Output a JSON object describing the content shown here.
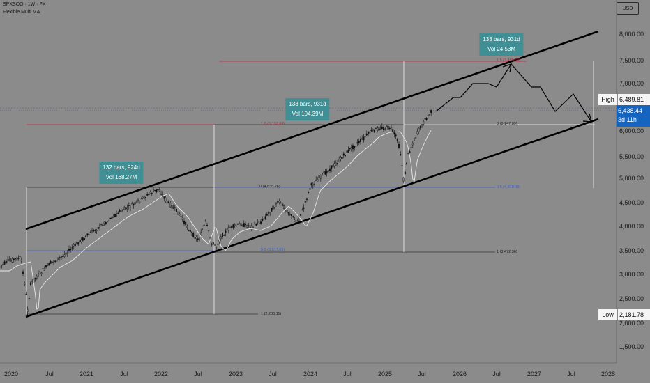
{
  "header": {
    "symbol_line": "SPXSOO · 1W · FX",
    "indicator": "Flexible Multi MA"
  },
  "currency_button": "USD",
  "y_axis": {
    "labels": [
      "8,000.00",
      "7,500.00",
      "7,000.00",
      "6,000.00",
      "5,500.00",
      "5,000.00",
      "4,500.00",
      "4,000.00",
      "3,500.00",
      "3,000.00",
      "2,500.00",
      "2,000.00",
      "1,500.00"
    ]
  },
  "x_axis": {
    "labels": [
      "2020",
      "Jul",
      "2021",
      "Jul",
      "2022",
      "Jul",
      "2023",
      "Jul",
      "2024",
      "Jul",
      "2025",
      "Jul",
      "2026",
      "Jul",
      "2027",
      "Jul",
      "2028"
    ]
  },
  "price_tags": {
    "high_label": "High",
    "high_value": "6,489.81",
    "current_value": "6,438.44",
    "countdown": "3d 11h",
    "low_label": "Low",
    "low_value": "2,181.78"
  },
  "annotations": [
    {
      "bars": "132 bars, 924d",
      "vol": "Vol 168.27M"
    },
    {
      "bars": "133 bars, 931d",
      "vol": "Vol 104.39M"
    },
    {
      "bars": "133 bars, 931d",
      "vol": "Vol 24.53M"
    }
  ],
  "fib_labels": {
    "a1": "1 (2,200.11)",
    "a0": "0 (4,835.26)",
    "a_blue": "0.5 (3,517.69)",
    "a_red": "1.5 (6,152.84)",
    "b1": "1 (3,472.30)",
    "b0": "0 (6,147.89)",
    "b_blue": "0.5 (4,810.09)",
    "b_red": "1.5 (7,485.69)"
  },
  "colors": {
    "background": "#8b8b8b",
    "candle": "#111111",
    "ma_line": "#e8e8e8",
    "channel": "#000000",
    "fib_red": "#c2263f",
    "fib_blue": "#3b5fd1",
    "annotation_bg": "#3f8f94",
    "current_tag": "#1565c0"
  }
}
